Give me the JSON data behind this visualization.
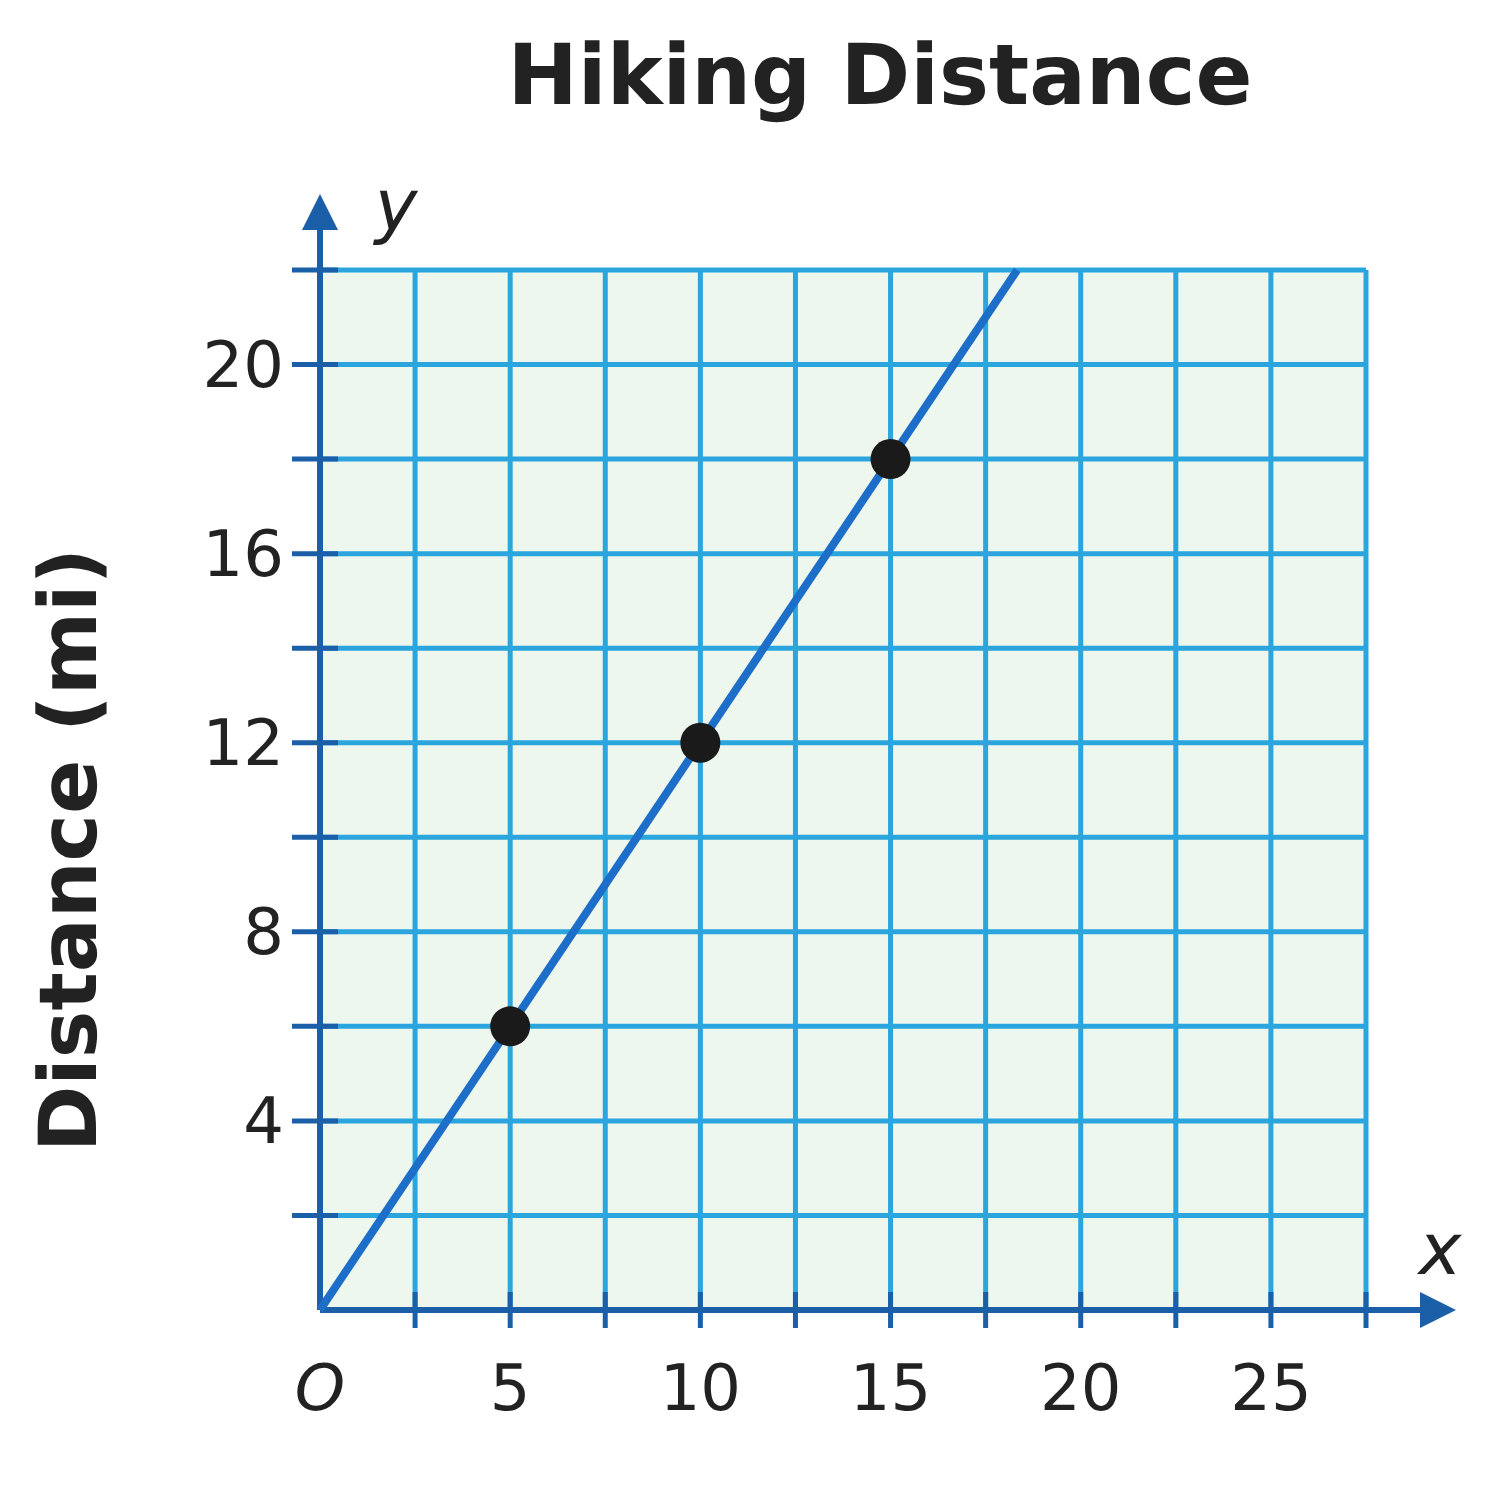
{
  "chart_data": {
    "type": "line",
    "title": "Hiking Distance",
    "xlabel": "x",
    "ylabel": "Distance (mi)",
    "annotations": [
      "y"
    ],
    "xlim": [
      0,
      27.5
    ],
    "ylim": [
      0,
      22
    ],
    "xticks": [
      {
        "value": 0,
        "label": "O"
      },
      {
        "value": 2.5,
        "label": null
      },
      5,
      {
        "value": 7.5,
        "label": null
      },
      10,
      {
        "value": 12.5,
        "label": null
      },
      15,
      {
        "value": 17.5,
        "label": null
      },
      20,
      {
        "value": 22.5,
        "label": null
      },
      25,
      {
        "value": 27.5,
        "label": null
      }
    ],
    "yticks": [
      {
        "value": 2,
        "label": null
      },
      4,
      {
        "value": 6,
        "label": null
      },
      8,
      {
        "value": 10,
        "label": null
      },
      12,
      {
        "value": 14,
        "label": null
      },
      16,
      {
        "value": 18,
        "label": null
      },
      20,
      {
        "value": 22,
        "label": null
      }
    ],
    "grid": true,
    "marker": "none",
    "line_style": "solid",
    "series": [
      {
        "color": "#1c6ec8",
        "x": [
          0,
          18.33
        ],
        "values": [
          0,
          22
        ]
      },
      {
        "type": "scatter",
        "color": "#1a1a1a",
        "marker": "circle",
        "x": [
          5,
          10,
          15
        ],
        "values": [
          6,
          12,
          18
        ]
      }
    ]
  }
}
